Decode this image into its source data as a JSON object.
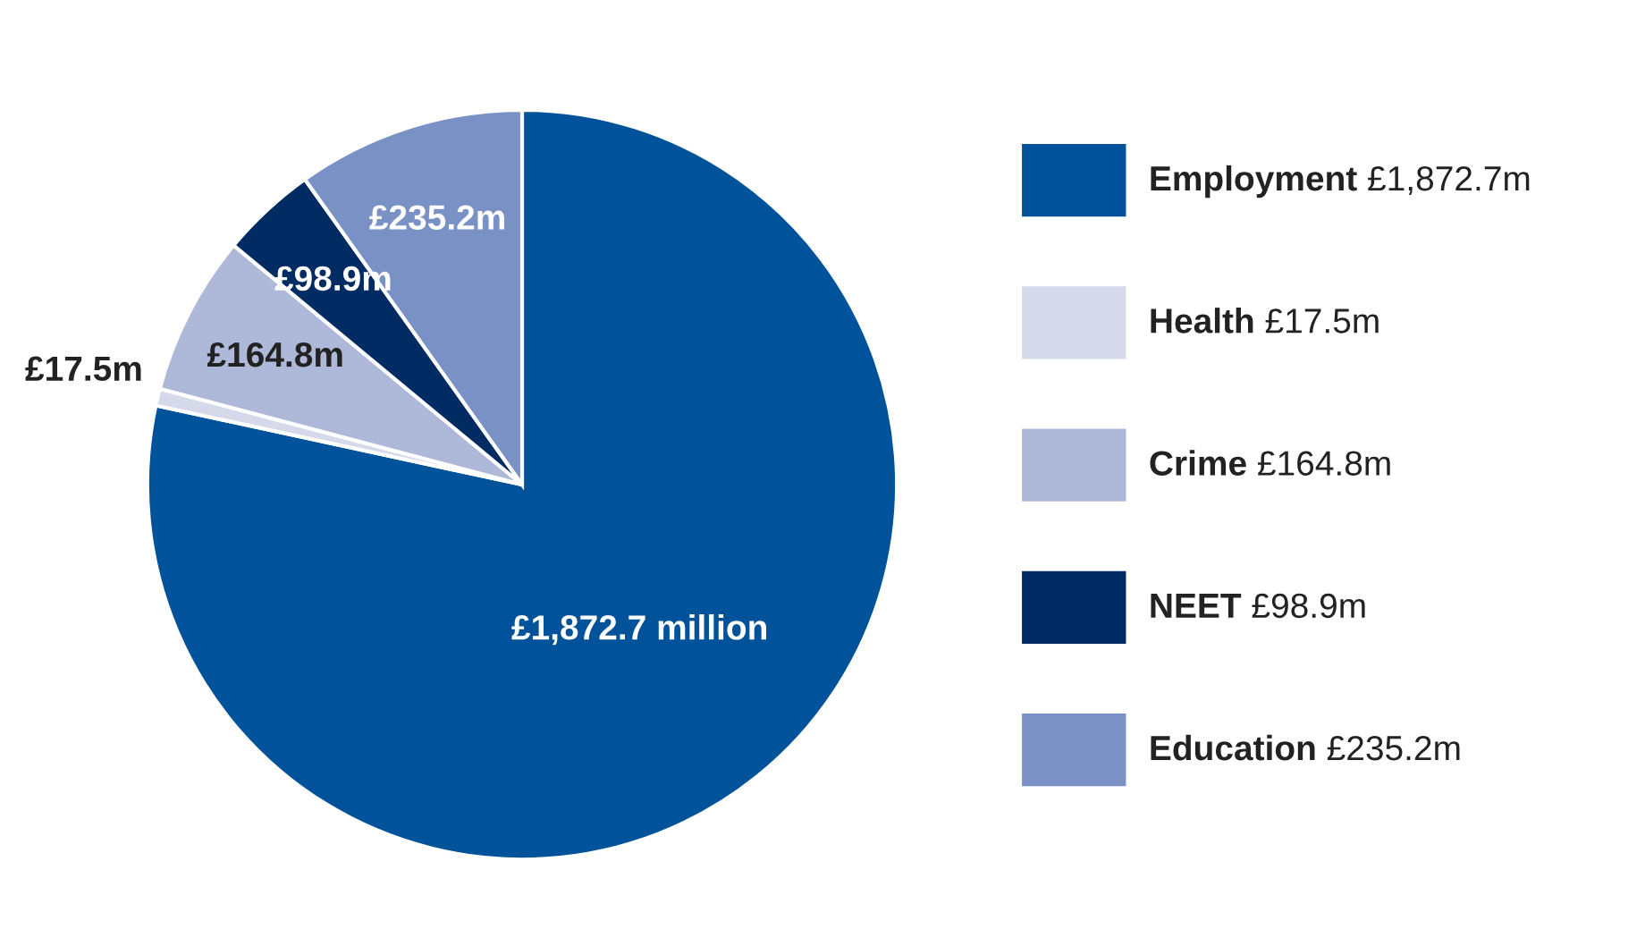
{
  "chart_data": {
    "type": "pie",
    "categories": [
      "Employment",
      "Health",
      "Crime",
      "NEET",
      "Education"
    ],
    "values": [
      1872.7,
      17.5,
      164.8,
      98.9,
      235.2
    ],
    "colors": [
      "#00529b",
      "#d5d9ea",
      "#aeb8d9",
      "#002b63",
      "#7a91c6"
    ],
    "value_labels": [
      "£1,872.7 million",
      "£17.5m",
      "£164.8m",
      "£98.9m",
      "£235.2m"
    ],
    "annotations": [
      "£1,872.7m",
      "£17.5m",
      "£164.8m",
      "£98.9m",
      "£235.2m"
    ],
    "legend": "right"
  }
}
